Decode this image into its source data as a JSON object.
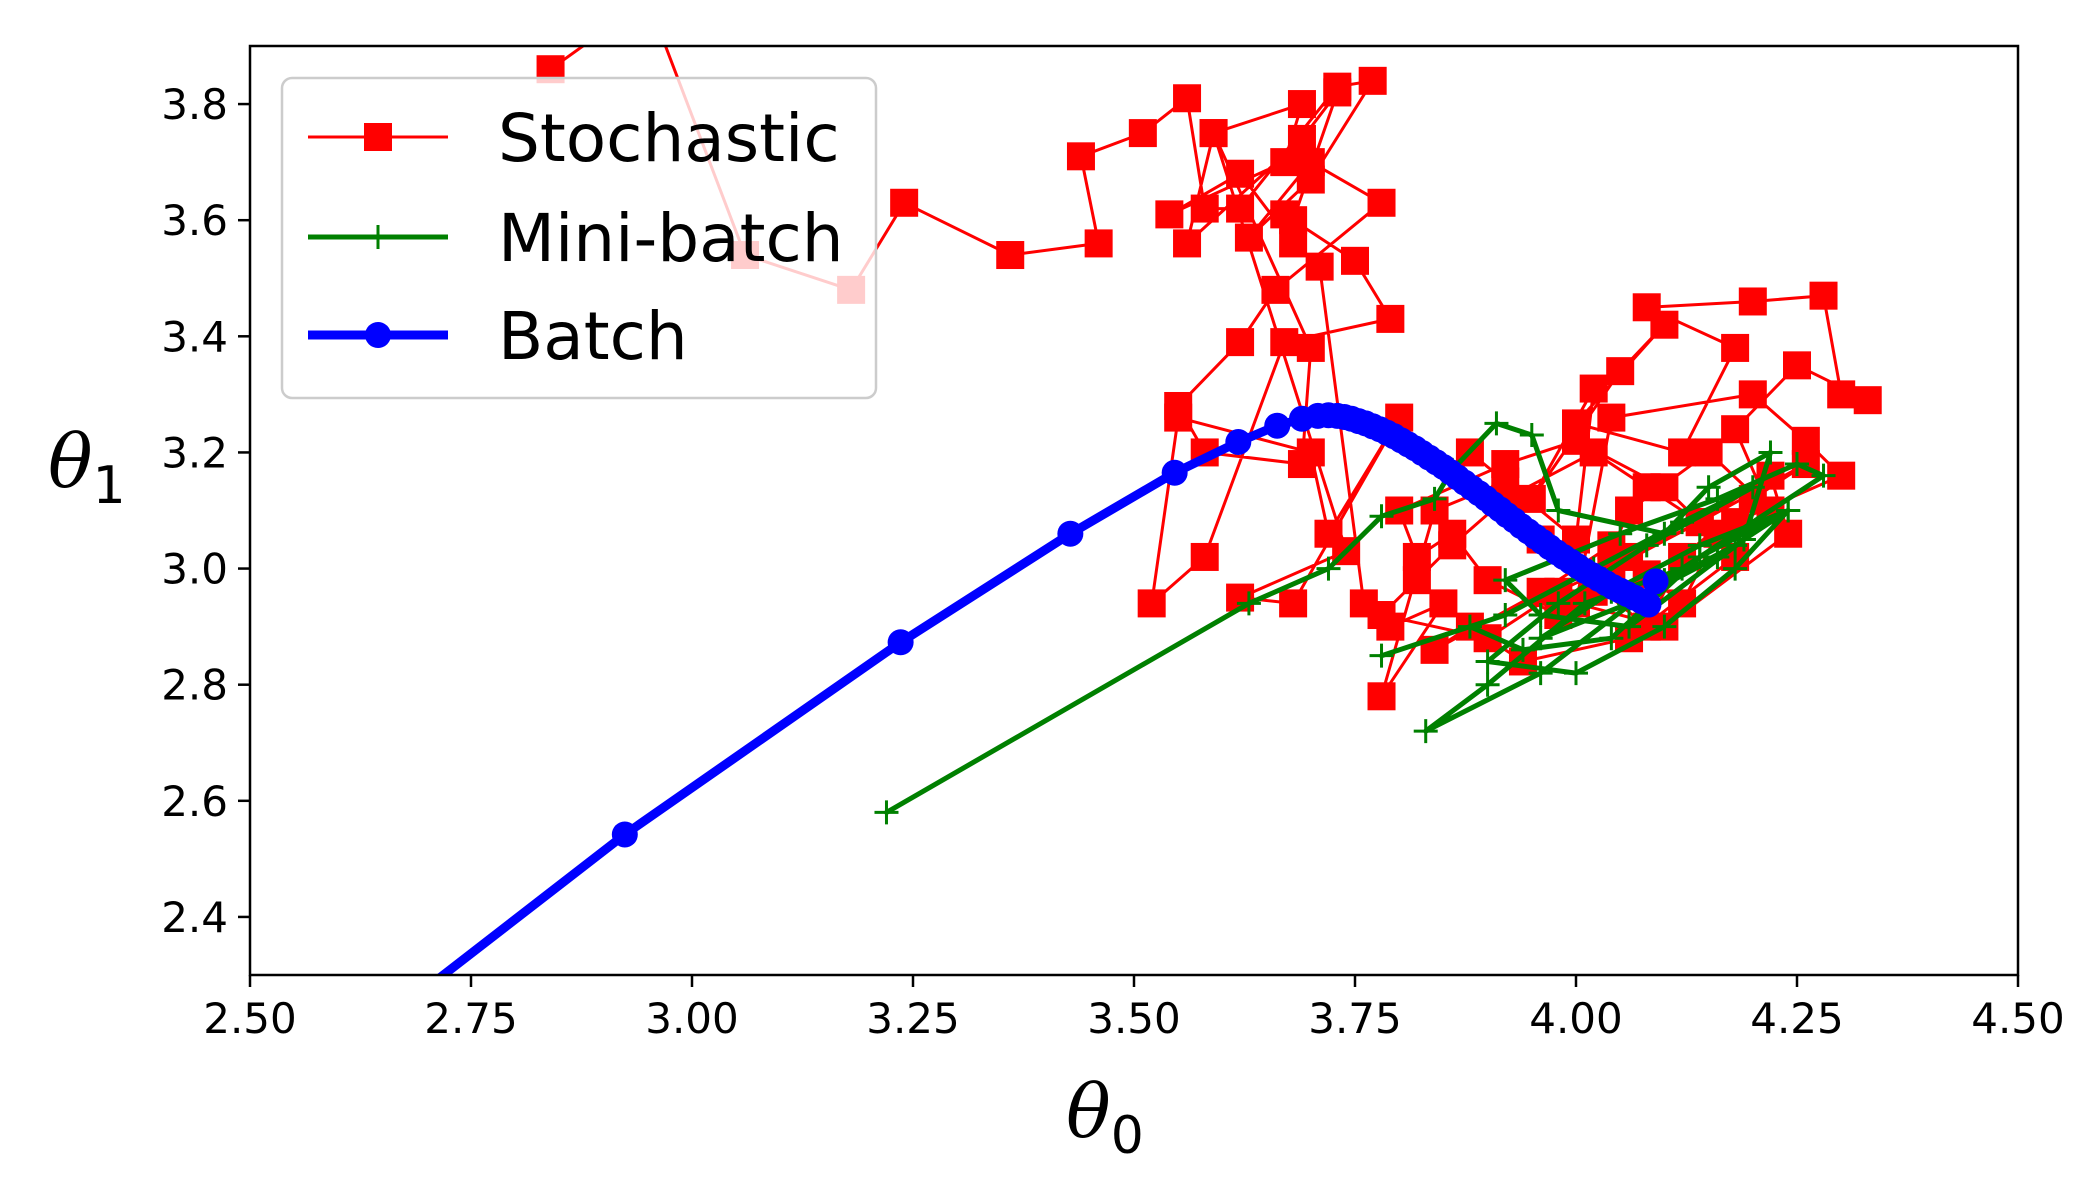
{
  "chart_data": {
    "type": "line",
    "xlabel": "θ",
    "xlabel_sub": "0",
    "ylabel": "θ",
    "ylabel_sub": "1",
    "xlim": [
      2.5,
      4.5
    ],
    "ylim": [
      2.3,
      3.9
    ],
    "xticks": [
      "2.50",
      "2.75",
      "3.00",
      "3.25",
      "3.50",
      "3.75",
      "4.00",
      "4.25",
      "4.50"
    ],
    "yticks": [
      "2.4",
      "2.6",
      "2.8",
      "3.0",
      "3.2",
      "3.4",
      "3.6",
      "3.8"
    ],
    "grid": false,
    "legend_position": "upper-left",
    "series": [
      {
        "name": "Stochastic",
        "color": "#ff0000",
        "marker": "square",
        "x": [
          2.84,
          2.95,
          3.06,
          3.18,
          3.24,
          3.36,
          3.46,
          3.44,
          3.51,
          3.56,
          3.58,
          3.62,
          3.73,
          3.77,
          3.7,
          3.63,
          3.7,
          3.78,
          3.66,
          3.62,
          3.55,
          3.58,
          3.69,
          3.7,
          3.59,
          3.56,
          3.69,
          3.73,
          3.68,
          3.67,
          3.75,
          3.79,
          3.67,
          3.58,
          3.52,
          3.55,
          3.7,
          3.72,
          3.8,
          3.68,
          3.62,
          3.74,
          3.59,
          3.69,
          3.67,
          3.54,
          3.62,
          3.68,
          3.71,
          3.76,
          3.79,
          3.85,
          3.78,
          3.84,
          3.92,
          3.88,
          4.0,
          4.02,
          3.95,
          4.05,
          4.1,
          4.0,
          4.12,
          4.18,
          4.08,
          4.2,
          4.28,
          4.3,
          4.33,
          4.25,
          4.18,
          4.22,
          4.15,
          4.06,
          4.02,
          3.96,
          4.08,
          4.12,
          4.2,
          4.26,
          4.14,
          4.04,
          3.98,
          3.9,
          3.86,
          3.82,
          3.8,
          3.92,
          4.0,
          4.1,
          4.18,
          4.06,
          3.94,
          3.88,
          3.84,
          3.96,
          4.04,
          4.12,
          4.16,
          4.08,
          4.02,
          3.92,
          3.86,
          3.82,
          3.78,
          3.9,
          3.98,
          4.06,
          4.14,
          4.22,
          4.24,
          4.1,
          4.0,
          4.04,
          4.2,
          4.26,
          4.3,
          4.18,
          4.08
        ],
        "y": [
          3.86,
          3.98,
          3.54,
          3.48,
          3.63,
          3.54,
          3.56,
          3.71,
          3.75,
          3.81,
          3.62,
          3.62,
          3.83,
          3.84,
          3.67,
          3.57,
          3.7,
          3.63,
          3.48,
          3.39,
          3.28,
          3.2,
          3.18,
          3.38,
          3.75,
          3.56,
          3.74,
          3.82,
          3.6,
          3.61,
          3.53,
          3.43,
          3.39,
          3.02,
          2.94,
          3.26,
          3.2,
          3.06,
          3.26,
          2.94,
          2.95,
          3.03,
          3.75,
          3.8,
          3.7,
          3.61,
          3.68,
          3.56,
          3.52,
          2.94,
          2.9,
          2.94,
          2.78,
          3.1,
          3.15,
          3.2,
          3.05,
          3.31,
          3.12,
          3.34,
          3.42,
          3.25,
          3.2,
          3.38,
          3.45,
          3.46,
          3.47,
          3.3,
          3.29,
          3.35,
          3.24,
          3.1,
          3.2,
          3.1,
          2.96,
          3.05,
          2.9,
          3.02,
          3.12,
          3.18,
          3.08,
          3.0,
          2.92,
          2.98,
          3.06,
          3.02,
          3.1,
          3.18,
          3.22,
          3.14,
          3.02,
          2.88,
          2.84,
          2.9,
          2.86,
          2.96,
          3.04,
          2.94,
          3.06,
          3.14,
          3.2,
          3.12,
          3.04,
          2.98,
          2.92,
          2.88,
          2.96,
          3.02,
          3.08,
          3.16,
          3.06,
          2.9,
          2.94,
          3.26,
          3.3,
          3.22,
          3.16,
          3.08,
          2.99
        ]
      },
      {
        "name": "Mini-batch",
        "color": "#008000",
        "marker": "plus",
        "x": [
          3.22,
          3.63,
          3.72,
          3.78,
          3.84,
          3.86,
          3.91,
          3.95,
          3.98,
          4.1,
          4.15,
          4.22,
          4.19,
          4.06,
          3.96,
          3.92,
          4.05,
          4.16,
          4.25,
          4.28,
          4.12,
          4.01,
          3.9,
          3.83,
          3.96,
          4.08,
          4.18,
          4.24,
          4.14,
          4.04,
          3.94,
          3.88,
          3.78,
          3.92,
          4.02,
          4.12,
          4.2,
          4.08,
          3.98,
          3.9,
          4.0,
          4.1,
          4.18,
          4.24,
          4.14,
          4.04,
          3.96,
          4.06,
          4.16,
          4.1
        ],
        "y": [
          2.58,
          2.94,
          3.0,
          3.09,
          3.12,
          3.17,
          3.25,
          3.23,
          3.1,
          3.06,
          3.14,
          3.2,
          3.05,
          2.9,
          2.92,
          2.98,
          3.06,
          3.12,
          3.18,
          3.16,
          3.0,
          2.94,
          2.8,
          2.72,
          2.82,
          2.96,
          3.04,
          3.1,
          3.02,
          2.88,
          2.86,
          2.9,
          2.85,
          2.92,
          3.0,
          3.08,
          3.14,
          3.04,
          2.94,
          2.84,
          2.82,
          2.9,
          3.0,
          3.1,
          3.04,
          2.96,
          2.88,
          2.94,
          3.02,
          2.98
        ]
      },
      {
        "name": "Batch",
        "color": "#0000ff",
        "marker": "circle",
        "x": [
          2.6,
          2.924,
          3.236,
          3.428,
          3.546,
          3.618,
          3.662,
          3.69,
          3.708,
          3.72,
          3.73,
          3.738,
          3.746,
          3.754,
          3.762,
          3.77,
          3.778,
          3.786,
          3.794,
          3.802,
          3.81,
          3.818,
          3.826,
          3.834,
          3.842,
          3.85,
          3.858,
          3.866,
          3.874,
          3.882,
          3.89,
          3.898,
          3.906,
          3.914,
          3.922,
          3.93,
          3.938,
          3.946,
          3.954,
          3.962,
          3.97,
          3.978,
          3.986,
          3.994,
          4.002,
          4.01,
          4.018,
          4.026,
          4.034,
          4.042,
          4.05,
          4.058,
          4.066,
          4.074,
          4.082,
          4.09
        ],
        "y": [
          2.16,
          2.542,
          2.873,
          3.06,
          3.165,
          3.218,
          3.246,
          3.258,
          3.263,
          3.264,
          3.263,
          3.261,
          3.258,
          3.254,
          3.25,
          3.245,
          3.24,
          3.234,
          3.228,
          3.221,
          3.214,
          3.207,
          3.199,
          3.191,
          3.183,
          3.175,
          3.166,
          3.157,
          3.148,
          3.139,
          3.13,
          3.121,
          3.111,
          3.102,
          3.092,
          3.083,
          3.073,
          3.064,
          3.055,
          3.046,
          3.037,
          3.028,
          3.02,
          3.012,
          3.004,
          2.996,
          2.989,
          2.982,
          2.975,
          2.968,
          2.962,
          2.956,
          2.95,
          2.944,
          2.938,
          2.978
        ]
      }
    ]
  }
}
